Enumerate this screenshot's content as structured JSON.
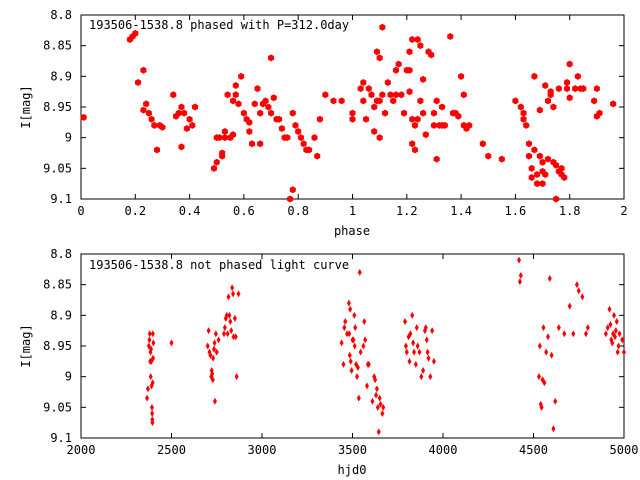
{
  "chart_data": [
    {
      "type": "scatter",
      "title": "193506-1538.8 phased with P=312.0day",
      "xlabel": "phase",
      "ylabel": "I[mag]",
      "xlim": [
        0,
        2
      ],
      "ylim": [
        9.1,
        8.8
      ],
      "y_inverted": true,
      "grid": false,
      "marker": "filled-hexagon",
      "marker_color": "#ff0000",
      "x_ticks": [
        "0",
        "0.2",
        "0.4",
        "0.6",
        "0.8",
        "1",
        "1.2",
        "1.4",
        "1.6",
        "1.8",
        "2"
      ],
      "y_ticks": [
        "8.8",
        "8.85",
        "8.9",
        "8.95",
        "9",
        "9.05",
        "9.1"
      ],
      "points": [
        [
          0.01,
          8.967
        ],
        [
          0.17,
          8.795
        ],
        [
          0.18,
          8.84
        ],
        [
          0.19,
          8.835
        ],
        [
          0.2,
          8.83
        ],
        [
          0.21,
          8.91
        ],
        [
          0.23,
          8.89
        ],
        [
          0.23,
          8.955
        ],
        [
          0.24,
          8.945
        ],
        [
          0.25,
          8.96
        ],
        [
          0.26,
          8.97
        ],
        [
          0.27,
          8.98
        ],
        [
          0.28,
          9.02
        ],
        [
          0.29,
          8.98
        ],
        [
          0.3,
          8.983
        ],
        [
          0.34,
          8.93
        ],
        [
          0.35,
          8.965
        ],
        [
          0.36,
          8.96
        ],
        [
          0.37,
          9.015
        ],
        [
          0.37,
          8.95
        ],
        [
          0.38,
          8.96
        ],
        [
          0.39,
          8.985
        ],
        [
          0.4,
          8.97
        ],
        [
          0.41,
          8.98
        ],
        [
          0.42,
          8.95
        ],
        [
          0.49,
          9.05
        ],
        [
          0.5,
          9.04
        ],
        [
          0.5,
          9.0
        ],
        [
          0.51,
          9.0
        ],
        [
          0.52,
          9.025
        ],
        [
          0.52,
          9.03
        ],
        [
          0.53,
          8.99
        ],
        [
          0.53,
          9.0
        ],
        [
          0.54,
          8.93
        ],
        [
          0.55,
          9.0
        ],
        [
          0.56,
          8.94
        ],
        [
          0.56,
          8.995
        ],
        [
          0.57,
          8.915
        ],
        [
          0.57,
          8.93
        ],
        [
          0.58,
          8.945
        ],
        [
          0.59,
          8.9
        ],
        [
          0.6,
          8.96
        ],
        [
          0.61,
          8.97
        ],
        [
          0.62,
          8.975
        ],
        [
          0.62,
          8.99
        ],
        [
          0.63,
          9.01
        ],
        [
          0.64,
          8.945
        ],
        [
          0.65,
          8.92
        ],
        [
          0.66,
          8.96
        ],
        [
          0.66,
          9.01
        ],
        [
          0.67,
          8.945
        ],
        [
          0.68,
          8.94
        ],
        [
          0.69,
          8.95
        ],
        [
          0.7,
          8.87
        ],
        [
          0.7,
          8.96
        ],
        [
          0.71,
          8.935
        ],
        [
          0.72,
          8.97
        ],
        [
          0.73,
          8.97
        ],
        [
          0.74,
          8.985
        ],
        [
          0.75,
          9.0
        ],
        [
          0.76,
          9.0
        ],
        [
          0.77,
          9.1
        ],
        [
          0.78,
          9.085
        ],
        [
          0.78,
          8.96
        ],
        [
          0.79,
          8.98
        ],
        [
          0.8,
          8.99
        ],
        [
          0.81,
          9.0
        ],
        [
          0.82,
          9.01
        ],
        [
          0.83,
          9.02
        ],
        [
          0.84,
          9.02
        ],
        [
          0.86,
          9.0
        ],
        [
          0.87,
          9.03
        ],
        [
          0.88,
          8.97
        ],
        [
          0.9,
          8.93
        ],
        [
          0.93,
          8.94
        ],
        [
          0.96,
          8.94
        ],
        [
          1.0,
          8.96
        ],
        [
          1.0,
          8.97
        ],
        [
          1.03,
          8.92
        ],
        [
          1.04,
          8.91
        ],
        [
          1.04,
          8.94
        ],
        [
          1.05,
          8.97
        ],
        [
          1.06,
          8.92
        ],
        [
          1.07,
          8.93
        ],
        [
          1.08,
          8.95
        ],
        [
          1.08,
          8.99
        ],
        [
          1.09,
          8.86
        ],
        [
          1.09,
          8.94
        ],
        [
          1.1,
          8.87
        ],
        [
          1.1,
          9.0
        ],
        [
          1.1,
          8.94
        ],
        [
          1.11,
          8.82
        ],
        [
          1.11,
          8.93
        ],
        [
          1.12,
          8.96
        ],
        [
          1.13,
          8.91
        ],
        [
          1.14,
          8.93
        ],
        [
          1.15,
          8.94
        ],
        [
          1.16,
          8.93
        ],
        [
          1.16,
          8.89
        ],
        [
          1.17,
          8.88
        ],
        [
          1.18,
          8.93
        ],
        [
          1.19,
          8.96
        ],
        [
          1.2,
          8.89
        ],
        [
          1.21,
          8.89
        ],
        [
          1.21,
          8.925
        ],
        [
          1.21,
          8.86
        ],
        [
          1.22,
          8.84
        ],
        [
          1.22,
          8.97
        ],
        [
          1.22,
          9.01
        ],
        [
          1.23,
          8.98
        ],
        [
          1.23,
          9.02
        ],
        [
          1.24,
          8.97
        ],
        [
          1.24,
          8.84
        ],
        [
          1.25,
          8.85
        ],
        [
          1.25,
          8.94
        ],
        [
          1.26,
          8.905
        ],
        [
          1.26,
          8.96
        ],
        [
          1.27,
          8.995
        ],
        [
          1.28,
          8.86
        ],
        [
          1.29,
          8.865
        ],
        [
          1.3,
          8.98
        ],
        [
          1.3,
          8.96
        ],
        [
          1.31,
          8.94
        ],
        [
          1.31,
          9.035
        ],
        [
          1.32,
          8.98
        ],
        [
          1.33,
          8.95
        ],
        [
          1.33,
          8.98
        ],
        [
          1.34,
          8.98
        ],
        [
          1.36,
          8.835
        ],
        [
          1.37,
          8.96
        ],
        [
          1.38,
          8.96
        ],
        [
          1.39,
          8.965
        ],
        [
          1.4,
          8.9
        ],
        [
          1.41,
          8.93
        ],
        [
          1.41,
          8.98
        ],
        [
          1.42,
          8.985
        ],
        [
          1.43,
          8.98
        ],
        [
          1.48,
          9.01
        ],
        [
          1.5,
          9.03
        ],
        [
          1.55,
          9.035
        ],
        [
          1.6,
          8.94
        ],
        [
          1.62,
          8.95
        ],
        [
          1.63,
          8.96
        ],
        [
          1.63,
          8.97
        ],
        [
          1.64,
          8.98
        ],
        [
          1.65,
          9.01
        ],
        [
          1.65,
          9.03
        ],
        [
          1.66,
          9.05
        ],
        [
          1.66,
          9.065
        ],
        [
          1.67,
          8.9
        ],
        [
          1.67,
          9.02
        ],
        [
          1.68,
          9.06
        ],
        [
          1.68,
          9.075
        ],
        [
          1.69,
          8.955
        ],
        [
          1.69,
          9.03
        ],
        [
          1.7,
          9.04
        ],
        [
          1.7,
          9.055
        ],
        [
          1.7,
          9.075
        ],
        [
          1.71,
          9.06
        ],
        [
          1.71,
          8.915
        ],
        [
          1.72,
          8.94
        ],
        [
          1.72,
          9.035
        ],
        [
          1.73,
          8.93
        ],
        [
          1.73,
          8.925
        ],
        [
          1.74,
          8.95
        ],
        [
          1.74,
          9.04
        ],
        [
          1.75,
          9.045
        ],
        [
          1.75,
          9.1
        ],
        [
          1.76,
          8.92
        ],
        [
          1.76,
          9.055
        ],
        [
          1.77,
          9.05
        ],
        [
          1.77,
          9.06
        ],
        [
          1.78,
          9.065
        ],
        [
          1.79,
          8.92
        ],
        [
          1.79,
          8.91
        ],
        [
          1.8,
          8.935
        ],
        [
          1.8,
          8.88
        ],
        [
          1.82,
          8.92
        ],
        [
          1.83,
          8.9
        ],
        [
          1.84,
          8.92
        ],
        [
          1.85,
          8.92
        ],
        [
          1.89,
          8.94
        ],
        [
          1.9,
          8.92
        ],
        [
          1.9,
          8.965
        ],
        [
          1.91,
          8.96
        ],
        [
          1.96,
          8.945
        ]
      ]
    },
    {
      "type": "scatter",
      "title": "193506-1538.8 not phased light curve",
      "xlabel": "hjd0",
      "ylabel": "I[mag]",
      "xlim": [
        2000,
        5000
      ],
      "ylim": [
        9.1,
        8.8
      ],
      "y_inverted": true,
      "grid": false,
      "marker": "diamond",
      "marker_color": "#ff0000",
      "x_ticks": [
        "2000",
        "2500",
        "3000",
        "3500",
        "4000",
        "4500",
        "5000"
      ],
      "y_ticks": [
        "8.8",
        "8.85",
        "8.9",
        "8.95",
        "9",
        "9.05",
        "9.1"
      ],
      "points": [
        [
          2365,
          9.035
        ],
        [
          2370,
          9.02
        ],
        [
          2375,
          8.95
        ],
        [
          2378,
          8.94
        ],
        [
          2380,
          8.93
        ],
        [
          2382,
          8.975
        ],
        [
          2384,
          8.96
        ],
        [
          2385,
          9.0
        ],
        [
          2387,
          8.955
        ],
        [
          2389,
          8.975
        ],
        [
          2390,
          9.015
        ],
        [
          2392,
          9.05
        ],
        [
          2393,
          9.06
        ],
        [
          2394,
          9.07
        ],
        [
          2395,
          9.075
        ],
        [
          2396,
          9.01
        ],
        [
          2397,
          8.93
        ],
        [
          2398,
          8.97
        ],
        [
          2400,
          8.945
        ],
        [
          2500,
          8.945
        ],
        [
          2700,
          8.95
        ],
        [
          2705,
          8.925
        ],
        [
          2710,
          8.96
        ],
        [
          2715,
          8.965
        ],
        [
          2720,
          9.0
        ],
        [
          2722,
          8.99
        ],
        [
          2725,
          8.995
        ],
        [
          2728,
          9.005
        ],
        [
          2730,
          8.97
        ],
        [
          2735,
          8.955
        ],
        [
          2738,
          8.945
        ],
        [
          2740,
          9.04
        ],
        [
          2745,
          8.93
        ],
        [
          2750,
          8.96
        ],
        [
          2760,
          8.94
        ],
        [
          2790,
          8.93
        ],
        [
          2795,
          8.92
        ],
        [
          2800,
          8.905
        ],
        [
          2805,
          8.9
        ],
        [
          2810,
          8.93
        ],
        [
          2815,
          8.87
        ],
        [
          2820,
          8.9
        ],
        [
          2825,
          8.91
        ],
        [
          2830,
          8.925
        ],
        [
          2835,
          8.855
        ],
        [
          2840,
          8.865
        ],
        [
          2843,
          8.935
        ],
        [
          2850,
          8.905
        ],
        [
          2855,
          8.935
        ],
        [
          2860,
          9.0
        ],
        [
          2870,
          8.865
        ],
        [
          3440,
          8.945
        ],
        [
          3450,
          8.98
        ],
        [
          3455,
          8.92
        ],
        [
          3460,
          8.91
        ],
        [
          3470,
          8.93
        ],
        [
          3480,
          8.88
        ],
        [
          3482,
          8.93
        ],
        [
          3485,
          8.965
        ],
        [
          3487,
          8.89
        ],
        [
          3490,
          8.975
        ],
        [
          3495,
          8.99
        ],
        [
          3500,
          8.94
        ],
        [
          3505,
          8.94
        ],
        [
          3510,
          8.9
        ],
        [
          3512,
          8.95
        ],
        [
          3515,
          8.92
        ],
        [
          3520,
          8.98
        ],
        [
          3525,
          9.0
        ],
        [
          3530,
          8.985
        ],
        [
          3535,
          9.035
        ],
        [
          3540,
          8.83
        ],
        [
          3545,
          8.96
        ],
        [
          3560,
          8.95
        ],
        [
          3565,
          8.91
        ],
        [
          3570,
          8.94
        ],
        [
          3580,
          9.015
        ],
        [
          3585,
          8.98
        ],
        [
          3590,
          8.98
        ],
        [
          3610,
          9.04
        ],
        [
          3620,
          9.0
        ],
        [
          3625,
          9.005
        ],
        [
          3630,
          9.03
        ],
        [
          3635,
          9.02
        ],
        [
          3640,
          9.05
        ],
        [
          3645,
          9.09
        ],
        [
          3650,
          9.035
        ],
        [
          3655,
          9.045
        ],
        [
          3660,
          9.105
        ],
        [
          3665,
          9.06
        ],
        [
          3670,
          9.05
        ],
        [
          3790,
          8.91
        ],
        [
          3795,
          8.95
        ],
        [
          3800,
          8.96
        ],
        [
          3810,
          8.935
        ],
        [
          3815,
          8.975
        ],
        [
          3820,
          8.93
        ],
        [
          3830,
          8.9
        ],
        [
          3835,
          8.945
        ],
        [
          3840,
          8.96
        ],
        [
          3850,
          8.98
        ],
        [
          3855,
          8.92
        ],
        [
          3860,
          8.95
        ],
        [
          3870,
          8.96
        ],
        [
          3880,
          9.0
        ],
        [
          3890,
          8.99
        ],
        [
          3900,
          8.925
        ],
        [
          3905,
          8.92
        ],
        [
          3910,
          8.94
        ],
        [
          3915,
          8.96
        ],
        [
          3920,
          8.97
        ],
        [
          3930,
          9.0
        ],
        [
          3940,
          8.925
        ],
        [
          3950,
          8.975
        ],
        [
          4420,
          8.81
        ],
        [
          4425,
          8.845
        ],
        [
          4430,
          8.835
        ],
        [
          4530,
          9.0
        ],
        [
          4535,
          8.95
        ],
        [
          4540,
          9.045
        ],
        [
          4545,
          9.05
        ],
        [
          4550,
          9.005
        ],
        [
          4555,
          8.92
        ],
        [
          4560,
          9.01
        ],
        [
          4570,
          8.96
        ],
        [
          4580,
          8.935
        ],
        [
          4590,
          8.84
        ],
        [
          4600,
          8.965
        ],
        [
          4610,
          9.085
        ],
        [
          4620,
          9.04
        ],
        [
          4640,
          8.92
        ],
        [
          4670,
          8.93
        ],
        [
          4700,
          8.885
        ],
        [
          4720,
          8.93
        ],
        [
          4740,
          8.85
        ],
        [
          4750,
          8.86
        ],
        [
          4770,
          8.87
        ],
        [
          4790,
          8.93
        ],
        [
          4800,
          8.92
        ],
        [
          4900,
          8.93
        ],
        [
          4910,
          8.92
        ],
        [
          4920,
          8.89
        ],
        [
          4925,
          8.915
        ],
        [
          4930,
          8.94
        ],
        [
          4935,
          8.945
        ],
        [
          4940,
          8.93
        ],
        [
          4945,
          8.9
        ],
        [
          4950,
          8.935
        ],
        [
          4955,
          8.925
        ],
        [
          4960,
          8.91
        ],
        [
          4965,
          8.96
        ],
        [
          4970,
          8.95
        ],
        [
          4975,
          8.93
        ],
        [
          4990,
          8.94
        ],
        [
          5000,
          8.96
        ]
      ]
    }
  ]
}
